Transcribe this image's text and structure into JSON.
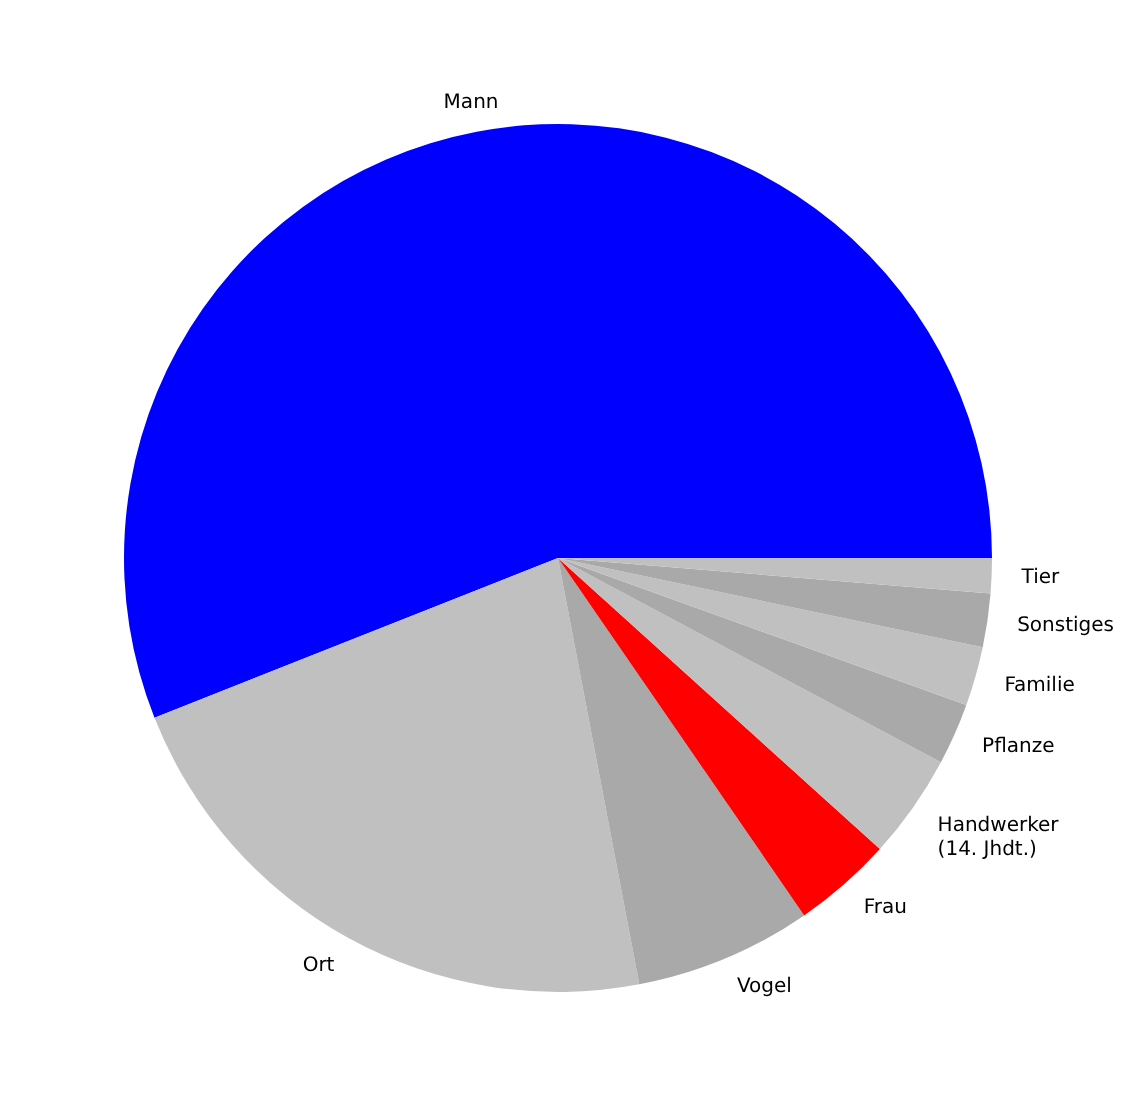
{
  "chart_data": {
    "type": "pie",
    "categories": [
      "Mann",
      "Ort",
      "Vogel",
      "Frau",
      "Handwerker\n(14. Jhdt.)",
      "Pflanze",
      "Familie",
      "Sonstiges",
      "Tier"
    ],
    "values": [
      56,
      22,
      6.6,
      3.7,
      3.9,
      2.3,
      2.2,
      2.0,
      1.3
    ],
    "colors": [
      "#0000ff",
      "#c0c0c0",
      "#a9a9a9",
      "#ff0000",
      "#c0c0c0",
      "#a9a9a9",
      "#c0c0c0",
      "#a9a9a9",
      "#c0c0c0"
    ]
  }
}
